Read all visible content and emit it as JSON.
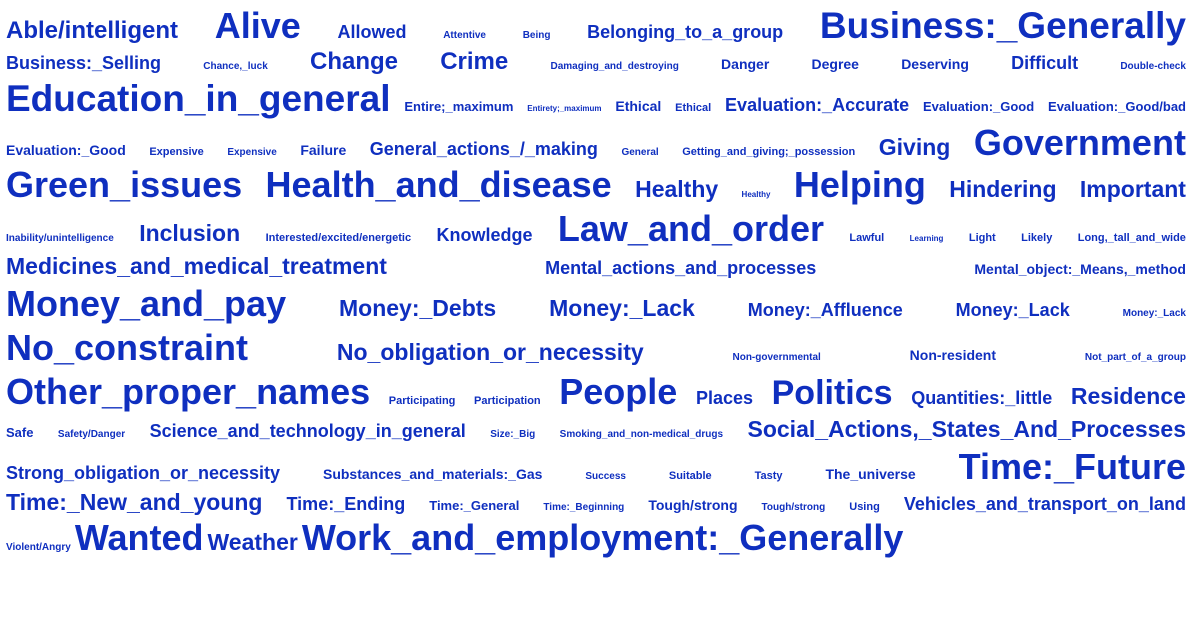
{
  "colors": {
    "word": "#0f2fbf",
    "background": "#ffffff"
  },
  "rows": [
    {
      "words": [
        {
          "text": "Able/intelligent",
          "size": 24
        },
        {
          "text": "Alive",
          "size": 36
        },
        {
          "text": "Allowed",
          "size": 18
        },
        {
          "text": "Attentive",
          "size": 10
        },
        {
          "text": "Being",
          "size": 10
        },
        {
          "text": "Belonging_to_a_group",
          "size": 18
        },
        {
          "text": "Business:_Generally",
          "size": 37
        }
      ]
    },
    {
      "words": [
        {
          "text": "Business:_Selling",
          "size": 18
        },
        {
          "text": "Chance,_luck",
          "size": 10
        },
        {
          "text": "Change",
          "size": 24
        },
        {
          "text": "Crime",
          "size": 24
        },
        {
          "text": "Damaging_and_destroying",
          "size": 10
        },
        {
          "text": "Danger",
          "size": 14
        },
        {
          "text": "Degree",
          "size": 14
        },
        {
          "text": "Deserving",
          "size": 14
        },
        {
          "text": "Difficult",
          "size": 18
        },
        {
          "text": "Double-check",
          "size": 10
        }
      ]
    },
    {
      "words": [
        {
          "text": "Education_in_general",
          "size": 37
        },
        {
          "text": "Entire;_maximum",
          "size": 13
        },
        {
          "text": "Entirety;_maximum",
          "size": 8
        },
        {
          "text": "Ethical",
          "size": 14
        },
        {
          "text": "Ethical",
          "size": 11
        },
        {
          "text": "Evaluation:_Accurate",
          "size": 18
        },
        {
          "text": "Evaluation:_Good",
          "size": 13
        },
        {
          "text": "Evaluation:_Good/bad",
          "size": 13
        }
      ]
    },
    {
      "words": [
        {
          "text": "Evaluation:_Good",
          "size": 14
        },
        {
          "text": "Expensive",
          "size": 11
        },
        {
          "text": "Expensive",
          "size": 10
        },
        {
          "text": "Failure",
          "size": 14
        },
        {
          "text": "General_actions_/_making",
          "size": 18
        },
        {
          "text": "General",
          "size": 10
        },
        {
          "text": "Getting_and_giving;_possession",
          "size": 11
        },
        {
          "text": "Giving",
          "size": 23
        },
        {
          "text": "Government",
          "size": 36
        }
      ]
    },
    {
      "words": [
        {
          "text": "Green_issues",
          "size": 36
        },
        {
          "text": "Health_and_disease",
          "size": 36
        },
        {
          "text": "Healthy",
          "size": 23
        },
        {
          "text": "Healthy",
          "size": 8
        },
        {
          "text": "Helping",
          "size": 36
        },
        {
          "text": "Hindering",
          "size": 23
        },
        {
          "text": "Important",
          "size": 23
        }
      ]
    },
    {
      "words": [
        {
          "text": "Inability/unintelligence",
          "size": 10
        },
        {
          "text": "Inclusion",
          "size": 23
        },
        {
          "text": "Interested/excited/energetic",
          "size": 11
        },
        {
          "text": "Knowledge",
          "size": 18
        },
        {
          "text": "Law_and_order",
          "size": 36
        },
        {
          "text": "Lawful",
          "size": 11
        },
        {
          "text": "Learning",
          "size": 8
        },
        {
          "text": "Light",
          "size": 11
        },
        {
          "text": "Likely",
          "size": 11
        },
        {
          "text": "Long,_tall_and_wide",
          "size": 11
        }
      ]
    },
    {
      "words": [
        {
          "text": "Medicines_and_medical_treatment",
          "size": 23
        },
        {
          "text": "Mental_actions_and_processes",
          "size": 18
        },
        {
          "text": "Mental_object:_Means,_method",
          "size": 14
        }
      ]
    },
    {
      "words": [
        {
          "text": "Money_and_pay",
          "size": 36
        },
        {
          "text": "Money:_Debts",
          "size": 23
        },
        {
          "text": "Money:_Lack",
          "size": 23
        },
        {
          "text": "Money:_Affluence",
          "size": 18
        },
        {
          "text": "Money:_Lack",
          "size": 18
        },
        {
          "text": "Money:_Lack",
          "size": 10
        }
      ]
    },
    {
      "words": [
        {
          "text": "No_constraint",
          "size": 36
        },
        {
          "text": "No_obligation_or_necessity",
          "size": 23
        },
        {
          "text": "Non-governmental",
          "size": 10
        },
        {
          "text": "Non-resident",
          "size": 14
        },
        {
          "text": "Not_part_of_a_group",
          "size": 10
        }
      ]
    },
    {
      "words": [
        {
          "text": "Other_proper_names",
          "size": 36
        },
        {
          "text": "Participating",
          "size": 11
        },
        {
          "text": "Participation",
          "size": 11
        },
        {
          "text": "People",
          "size": 36
        },
        {
          "text": "Places",
          "size": 18
        },
        {
          "text": "Politics",
          "size": 34
        },
        {
          "text": "Quantities:_little",
          "size": 18
        },
        {
          "text": "Residence",
          "size": 23
        }
      ]
    },
    {
      "words": [
        {
          "text": "Safe",
          "size": 13
        },
        {
          "text": "Safety/Danger",
          "size": 10
        },
        {
          "text": "Science_and_technology_in_general",
          "size": 18
        },
        {
          "text": "Size:_Big",
          "size": 10
        },
        {
          "text": "Smoking_and_non-medical_drugs",
          "size": 10
        },
        {
          "text": "Social_Actions,_States_And_Processes",
          "size": 23
        }
      ]
    },
    {
      "words": [
        {
          "text": "Strong_obligation_or_necessity",
          "size": 18
        },
        {
          "text": "Substances_and_materials:_Gas",
          "size": 14
        },
        {
          "text": "Success",
          "size": 10
        },
        {
          "text": "Suitable",
          "size": 11
        },
        {
          "text": "Tasty",
          "size": 11
        },
        {
          "text": "The_universe",
          "size": 14
        },
        {
          "text": "Time:_Future",
          "size": 36
        }
      ]
    },
    {
      "words": [
        {
          "text": "Time:_New_and_young",
          "size": 23
        },
        {
          "text": "Time:_Ending",
          "size": 18
        },
        {
          "text": "Time:_General",
          "size": 13
        },
        {
          "text": "Time:_Beginning",
          "size": 10
        },
        {
          "text": "Tough/strong",
          "size": 14
        },
        {
          "text": "Tough/strong",
          "size": 10
        },
        {
          "text": "Using",
          "size": 11
        },
        {
          "text": "Vehicles_and_transport_on_land",
          "size": 18
        }
      ]
    },
    {
      "align": "left",
      "words": [
        {
          "text": "Violent/Angry",
          "size": 10
        },
        {
          "text": "Wanted",
          "size": 36
        },
        {
          "text": "Weather",
          "size": 23
        },
        {
          "text": "Work_and_employment:_Generally",
          "size": 36
        }
      ]
    }
  ]
}
